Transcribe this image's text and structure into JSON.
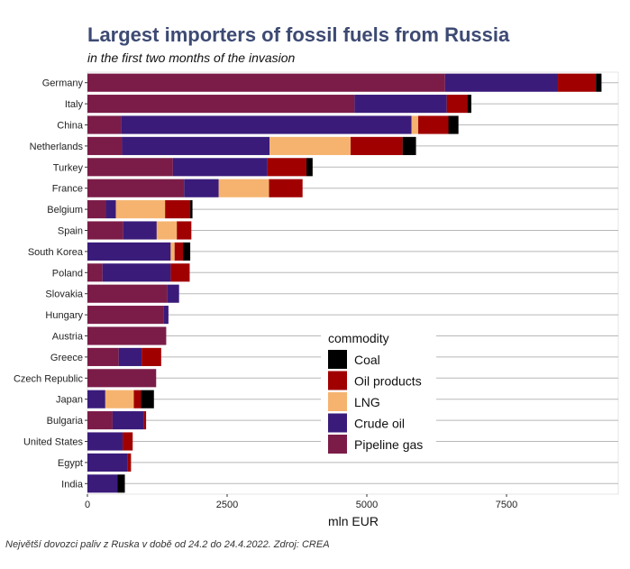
{
  "title": "Largest importers of fossil fuels from Russia",
  "subtitle": "in the first two months of the invasion",
  "caption": "Největší dovozci paliv z Ruska v době od 24.2 do 24.4.2022. Zdroj: CREA",
  "chart_data": {
    "type": "bar",
    "orientation": "horizontal",
    "stacked": true,
    "title": "Largest importers of fossil fuels from Russia",
    "subtitle": "in the first two months of the invasion",
    "xlabel": "mln EUR",
    "ylabel": "",
    "xlim": [
      0,
      9500
    ],
    "xticks": [
      0,
      2500,
      5000,
      7500
    ],
    "grid": true,
    "legend_title": "commodity",
    "legend_placement": "center-right",
    "legend_order": [
      "Coal",
      "Oil products",
      "LNG",
      "Crude oil",
      "Pipeline gas"
    ],
    "categories": [
      "Germany",
      "Italy",
      "China",
      "Netherlands",
      "Turkey",
      "France",
      "Belgium",
      "Spain",
      "South Korea",
      "Poland",
      "Slovakia",
      "Hungary",
      "Austria",
      "Greece",
      "Czech Republic",
      "Japan",
      "Bulgaria",
      "United States",
      "Egypt",
      "India"
    ],
    "series": [
      {
        "name": "Pipeline gas",
        "color": "#7b1c48",
        "values": [
          6400,
          4780,
          600,
          620,
          1530,
          1730,
          330,
          640,
          0,
          270,
          1430,
          1360,
          1410,
          560,
          1230,
          0,
          450,
          0,
          0,
          0
        ]
      },
      {
        "name": "Crude oil",
        "color": "#3a1b7a",
        "values": [
          2020,
          1650,
          5200,
          2640,
          1690,
          620,
          180,
          600,
          1490,
          1220,
          210,
          90,
          0,
          410,
          0,
          320,
          560,
          630,
          720,
          540
        ]
      },
      {
        "name": "LNG",
        "color": "#f5b36f",
        "values": [
          0,
          0,
          120,
          1450,
          0,
          900,
          880,
          360,
          70,
          0,
          0,
          0,
          0,
          0,
          0,
          510,
          0,
          0,
          0,
          0
        ]
      },
      {
        "name": "Oil products",
        "color": "#a10000",
        "values": [
          680,
          370,
          540,
          930,
          700,
          600,
          450,
          260,
          150,
          340,
          0,
          0,
          0,
          350,
          0,
          130,
          40,
          180,
          60,
          0
        ]
      },
      {
        "name": "Coal",
        "color": "#000000",
        "values": [
          100,
          70,
          180,
          240,
          110,
          0,
          40,
          0,
          130,
          0,
          0,
          0,
          0,
          0,
          0,
          230,
          0,
          0,
          0,
          130
        ]
      }
    ]
  }
}
